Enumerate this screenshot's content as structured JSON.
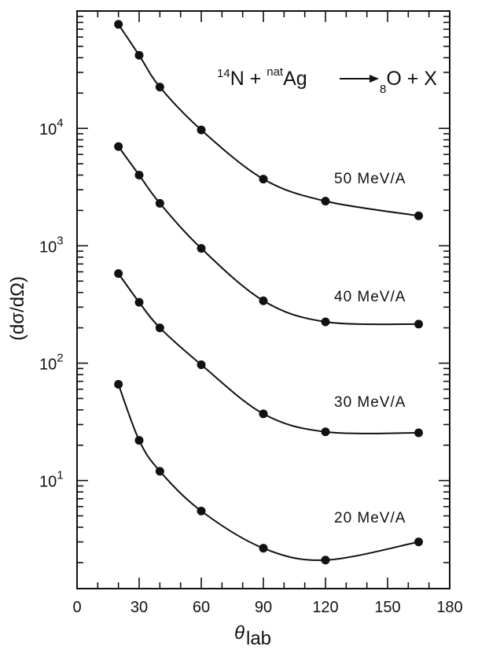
{
  "chart_data": {
    "type": "scatter",
    "title": {
      "mass_number": "14",
      "projectile": "N",
      "plus": " + ",
      "target_prefix": "nat",
      "target": "Ag",
      "charge_subscript": "8",
      "product": "O",
      "suffix": " + X"
    },
    "xlabel": "θ",
    "xlabel_subscript": "lab",
    "ylabel": "(dσ/dΩ)",
    "xlim": [
      0,
      180
    ],
    "ylim": [
      1.2,
      100000
    ],
    "y_scale": "log",
    "x_ticks": [
      0,
      30,
      60,
      90,
      120,
      150,
      180
    ],
    "x_tick_labels": [
      "0",
      "30",
      "60",
      "90",
      "120",
      "150",
      "180"
    ],
    "y_decade_ticks": [
      {
        "value": 10,
        "base": "10",
        "exp": "1"
      },
      {
        "value": 100,
        "base": "10",
        "exp": "2"
      },
      {
        "value": 1000,
        "base": "10",
        "exp": "3"
      },
      {
        "value": 10000,
        "base": "10",
        "exp": "4"
      }
    ],
    "grid": false,
    "series": [
      {
        "name": "50 MeV/A",
        "x": [
          20,
          30,
          40,
          60,
          90,
          120,
          165
        ],
        "y": [
          77000,
          42000,
          22500,
          9700,
          3700,
          2400,
          1800
        ]
      },
      {
        "name": "40 MeV/A",
        "x": [
          20,
          30,
          40,
          60,
          90,
          120,
          165
        ],
        "y": [
          7000,
          4000,
          2300,
          950,
          340,
          225,
          215
        ]
      },
      {
        "name": "30 MeV/A",
        "x": [
          20,
          30,
          40,
          60,
          90,
          120,
          165
        ],
        "y": [
          580,
          330,
          200,
          97,
          37,
          26,
          25.5
        ]
      },
      {
        "name": "20 MeV/A",
        "x": [
          20,
          30,
          40,
          60,
          90,
          120,
          165
        ],
        "y": [
          66,
          22,
          12,
          5.5,
          2.65,
          2.1,
          3.0
        ]
      }
    ]
  }
}
